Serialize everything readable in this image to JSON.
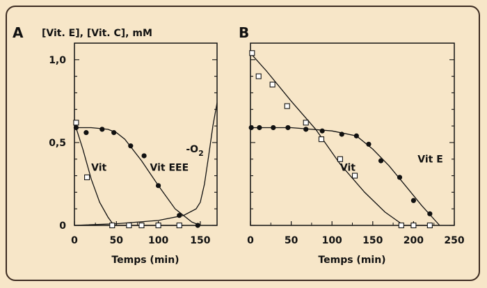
{
  "panels": {
    "A": {
      "letter": "A",
      "top_label": "[Vit. E], [Vit. C], mM"
    },
    "B": {
      "letter": "B"
    }
  },
  "chart_data": [
    {
      "type": "line",
      "panel": "A",
      "xlabel": "Temps (min)",
      "ylabel": "[Vit. E], [Vit. C], mM",
      "xlim": [
        0,
        170
      ],
      "ylim": [
        0,
        1.1
      ],
      "xticks": [
        0,
        50,
        100,
        150
      ],
      "yticks": [
        0,
        0.5,
        1.0
      ],
      "ytick_labels": [
        "0",
        "0,5",
        "1,0"
      ],
      "annotations": [
        {
          "text": "Vit",
          "x": 20,
          "y": 0.33
        },
        {
          "text": "Vit EEE",
          "x": 90,
          "y": 0.33
        },
        {
          "text": "-O",
          "sub": "2",
          "x": 133,
          "y": 0.44
        }
      ],
      "series": [
        {
          "marker": "square-open",
          "points": [
            [
              2,
              0.62
            ],
            [
              15,
              0.29
            ],
            [
              45,
              0.0
            ],
            [
              65,
              0.0
            ],
            [
              80,
              0.0
            ],
            [
              100,
              0.0
            ],
            [
              125,
              0.0
            ]
          ],
          "curve": [
            [
              0,
              0.62
            ],
            [
              10,
              0.46
            ],
            [
              20,
              0.28
            ],
            [
              30,
              0.14
            ],
            [
              40,
              0.05
            ],
            [
              47,
              0.0
            ],
            [
              130,
              0.0
            ]
          ]
        },
        {
          "marker": "circle-filled",
          "points": [
            [
              2,
              0.59
            ],
            [
              14,
              0.56
            ],
            [
              33,
              0.58
            ],
            [
              47,
              0.56
            ],
            [
              67,
              0.48
            ],
            [
              83,
              0.42
            ],
            [
              100,
              0.24
            ],
            [
              125,
              0.06
            ],
            [
              147,
              0.0
            ]
          ],
          "curve": [
            [
              0,
              0.59
            ],
            [
              20,
              0.59
            ],
            [
              40,
              0.58
            ],
            [
              50,
              0.56
            ],
            [
              60,
              0.52
            ],
            [
              80,
              0.39
            ],
            [
              100,
              0.24
            ],
            [
              120,
              0.1
            ],
            [
              140,
              0.02
            ],
            [
              150,
              0.0
            ]
          ]
        },
        {
          "marker": "none",
          "curve": [
            [
              0,
              0.0
            ],
            [
              50,
              0.01
            ],
            [
              100,
              0.03
            ],
            [
              130,
              0.06
            ],
            [
              145,
              0.1
            ],
            [
              150,
              0.14
            ],
            [
              155,
              0.25
            ],
            [
              160,
              0.42
            ],
            [
              165,
              0.6
            ],
            [
              170,
              0.74
            ]
          ]
        }
      ]
    },
    {
      "type": "line",
      "panel": "B",
      "xlabel": "Temps (min)",
      "xlim": [
        0,
        250
      ],
      "ylim": [
        0,
        1.1
      ],
      "xticks": [
        0,
        50,
        100,
        150,
        200,
        250
      ],
      "yticks": [
        0,
        0.5,
        1.0
      ],
      "annotations": [
        {
          "text": "Vit",
          "x": 110,
          "y": 0.33
        },
        {
          "text": "Vit E",
          "x": 205,
          "y": 0.38
        }
      ],
      "series": [
        {
          "marker": "square-open",
          "points": [
            [
              2,
              1.04
            ],
            [
              10,
              0.9
            ],
            [
              27,
              0.85
            ],
            [
              45,
              0.72
            ],
            [
              68,
              0.62
            ],
            [
              87,
              0.52
            ],
            [
              110,
              0.4
            ],
            [
              128,
              0.3
            ],
            [
              185,
              0.0
            ],
            [
              200,
              0.0
            ],
            [
              220,
              0.0
            ]
          ],
          "curve": [
            [
              0,
              1.04
            ],
            [
              20,
              0.93
            ],
            [
              50,
              0.75
            ],
            [
              80,
              0.58
            ],
            [
              110,
              0.37
            ],
            [
              140,
              0.2
            ],
            [
              165,
              0.08
            ],
            [
              188,
              0.0
            ],
            [
              220,
              0.0
            ]
          ]
        },
        {
          "marker": "circle-filled",
          "points": [
            [
              1,
              0.59
            ],
            [
              11,
              0.59
            ],
            [
              28,
              0.59
            ],
            [
              46,
              0.59
            ],
            [
              68,
              0.58
            ],
            [
              88,
              0.57
            ],
            [
              112,
              0.55
            ],
            [
              130,
              0.54
            ],
            [
              145,
              0.49
            ],
            [
              160,
              0.39
            ],
            [
              183,
              0.29
            ],
            [
              200,
              0.15
            ],
            [
              220,
              0.07
            ]
          ],
          "curve": [
            [
              0,
              0.59
            ],
            [
              50,
              0.59
            ],
            [
              100,
              0.57
            ],
            [
              130,
              0.54
            ],
            [
              150,
              0.46
            ],
            [
              170,
              0.36
            ],
            [
              190,
              0.24
            ],
            [
              210,
              0.12
            ],
            [
              232,
              0.0
            ]
          ]
        }
      ]
    }
  ]
}
